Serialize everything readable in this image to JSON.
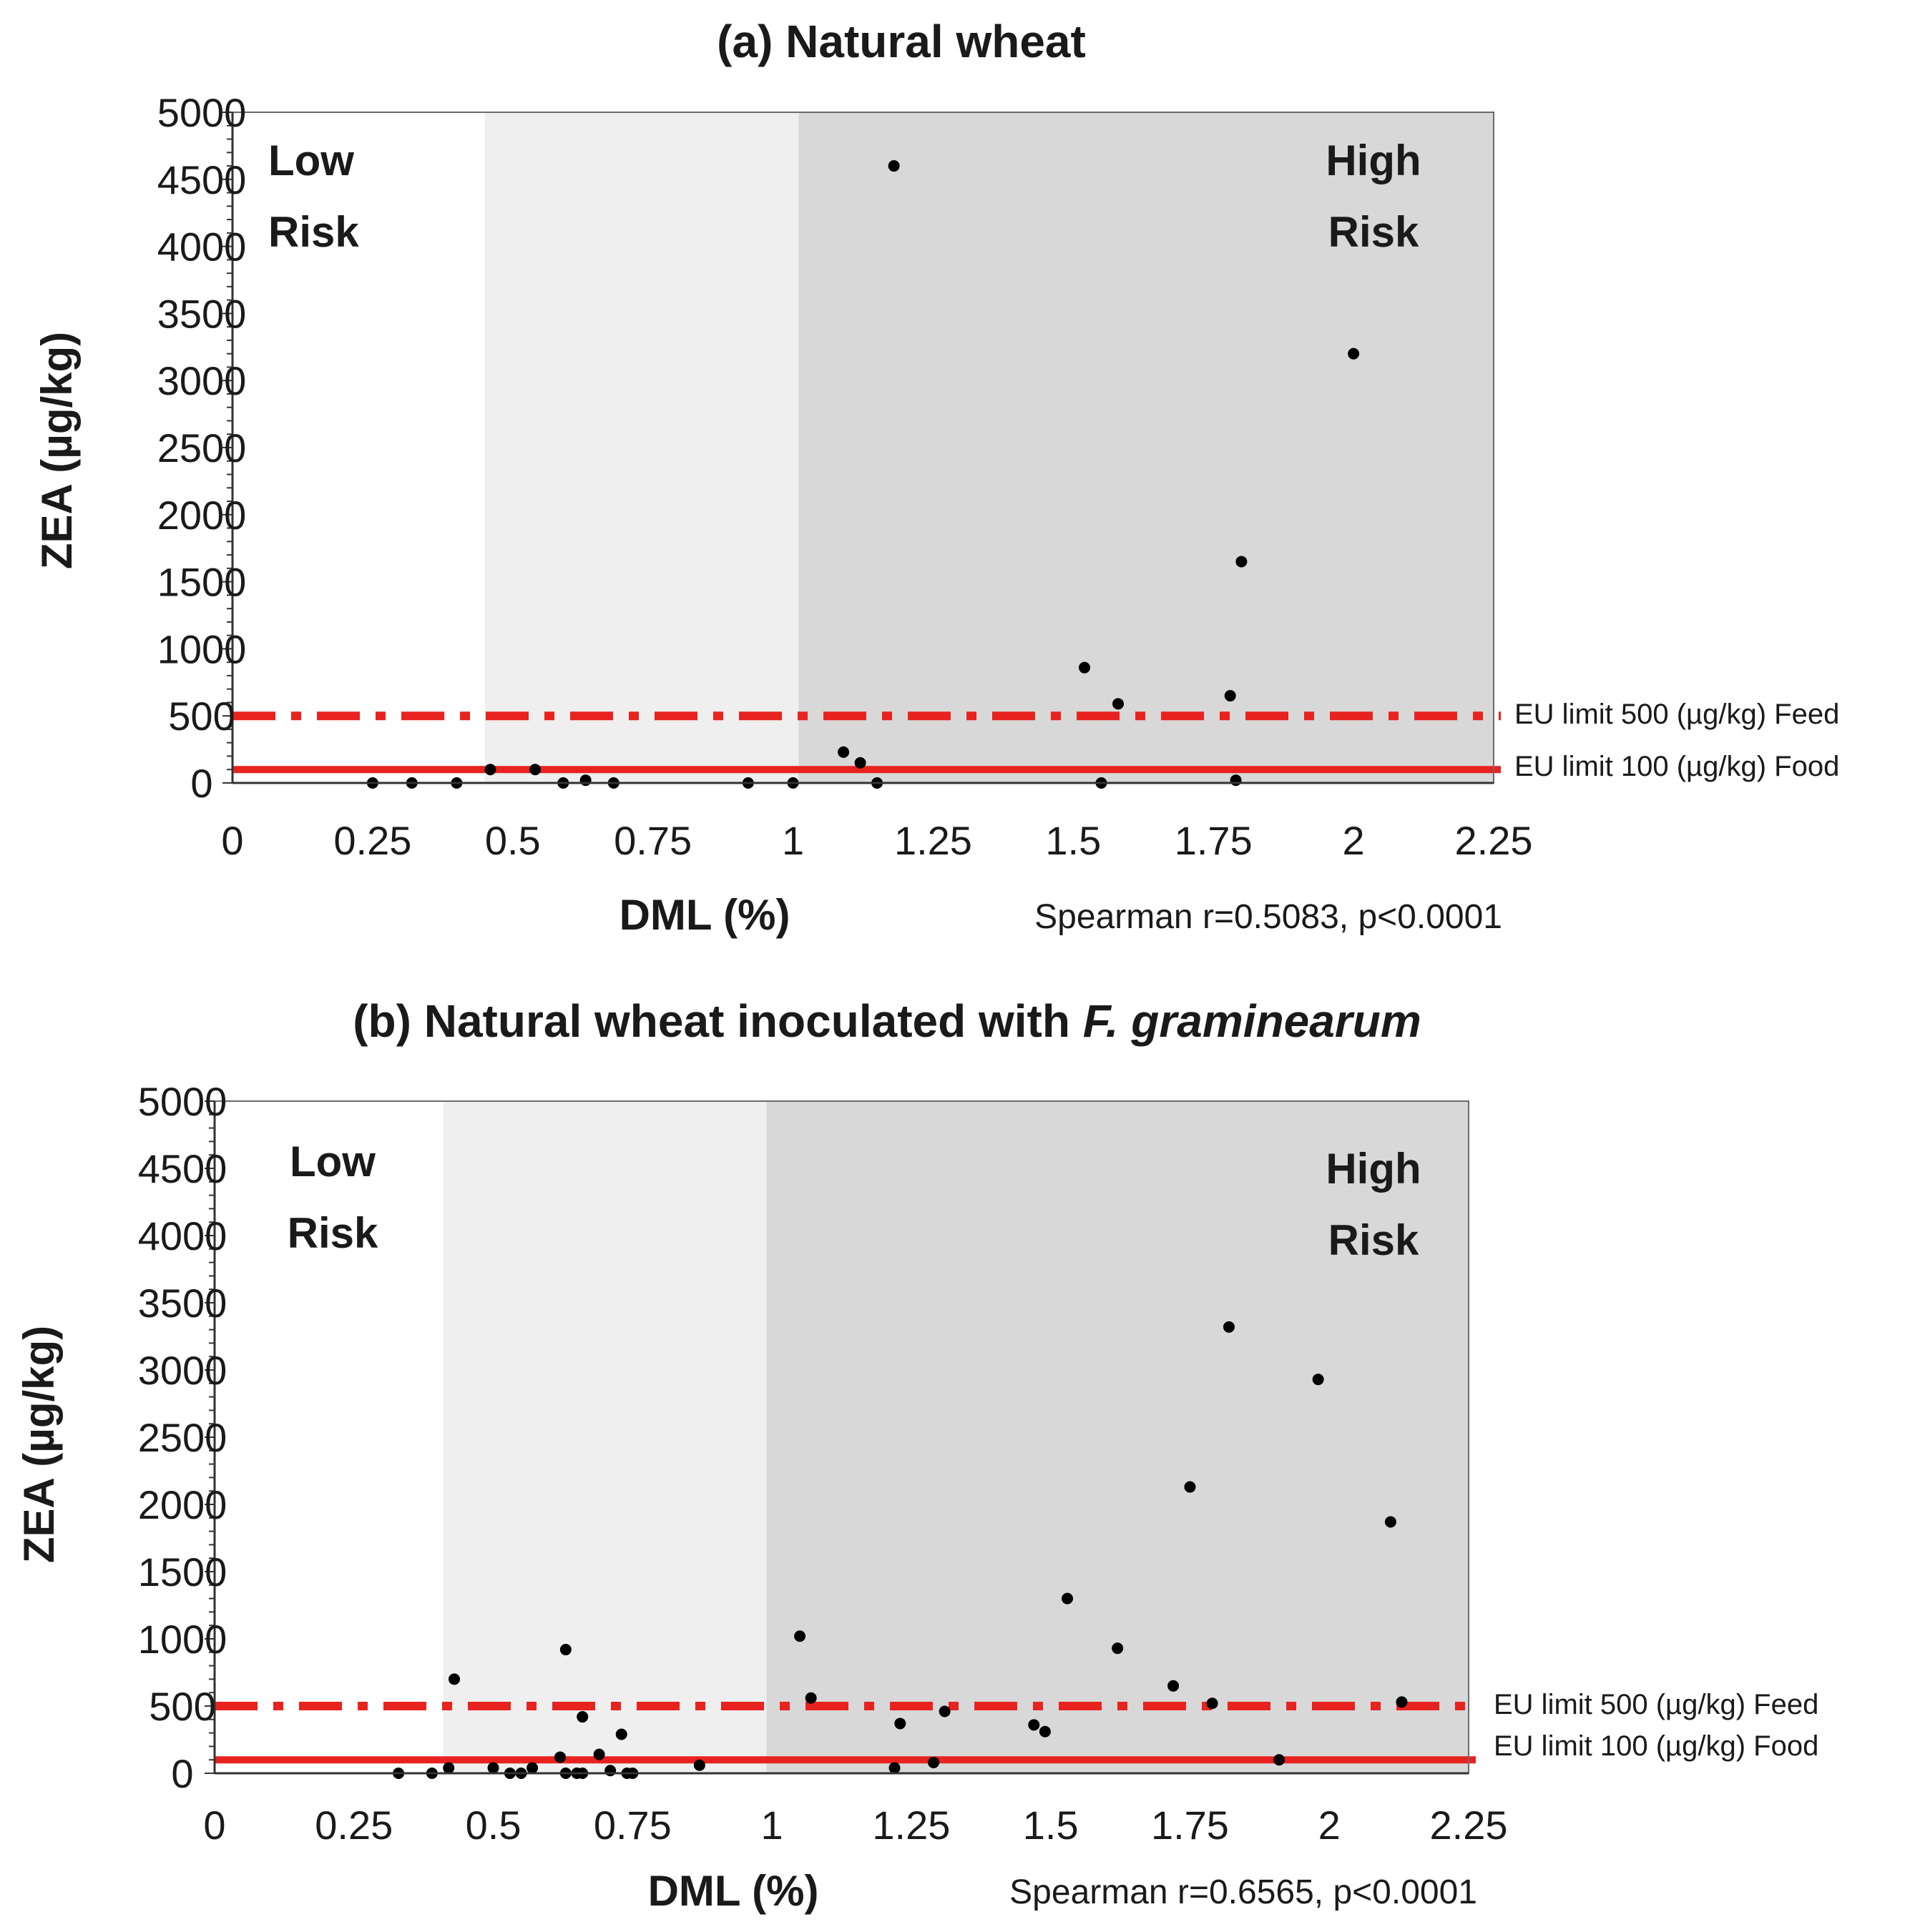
{
  "chart_data": [
    {
      "type": "scatter",
      "title_prefix": "(a) Natural wheat",
      "title_italic": "",
      "xlabel": "DML (%)",
      "ylabel": "ZEA (µg/kg)",
      "xlim": [
        0,
        2.25
      ],
      "ylim": [
        0,
        5000
      ],
      "x_ticks": [
        "0",
        "0.25",
        "0.5",
        "0.75",
        "1",
        "1.25",
        "1.5",
        "1.75",
        "2",
        "2.25"
      ],
      "y_ticks": [
        "0",
        "500",
        "1000",
        "1500",
        "2000",
        "2500",
        "3000",
        "3500",
        "4000",
        "4500",
        "5000"
      ],
      "zones": [
        {
          "name": "low",
          "x_from": 0,
          "x_to": 0.45,
          "color": "#ffffff"
        },
        {
          "name": "medium",
          "x_from": 0.45,
          "x_to": 1.01,
          "color": "#efefef"
        },
        {
          "name": "high",
          "x_from": 1.01,
          "x_to": 2.25,
          "color": "#d8d8d8"
        }
      ],
      "low_risk_label": [
        "Low",
        "Risk"
      ],
      "high_risk_label": [
        "High",
        "Risk"
      ],
      "limits": [
        {
          "value": 500,
          "style": "dashdot",
          "label": "EU  limit 500 (µg/kg)  Feed"
        },
        {
          "value": 100,
          "style": "solid",
          "label": "EU  limit 100 (µg/kg)  Food"
        }
      ],
      "limit_color": "#e8231f",
      "stats": "Spearman  r=0.5083,  p<0.0001",
      "points": [
        {
          "x": 0.25,
          "y": 0
        },
        {
          "x": 0.32,
          "y": 0
        },
        {
          "x": 0.4,
          "y": 0
        },
        {
          "x": 0.46,
          "y": 100
        },
        {
          "x": 0.54,
          "y": 100
        },
        {
          "x": 0.59,
          "y": 0
        },
        {
          "x": 0.63,
          "y": 20
        },
        {
          "x": 0.68,
          "y": 0
        },
        {
          "x": 0.92,
          "y": 0
        },
        {
          "x": 1.0,
          "y": 0
        },
        {
          "x": 1.09,
          "y": 230
        },
        {
          "x": 1.12,
          "y": 150
        },
        {
          "x": 1.15,
          "y": 0
        },
        {
          "x": 1.18,
          "y": 4600
        },
        {
          "x": 1.52,
          "y": 860
        },
        {
          "x": 1.55,
          "y": 0
        },
        {
          "x": 1.58,
          "y": 590
        },
        {
          "x": 1.78,
          "y": 650
        },
        {
          "x": 1.79,
          "y": 20
        },
        {
          "x": 1.8,
          "y": 1650
        },
        {
          "x": 2.0,
          "y": 3200
        }
      ]
    },
    {
      "type": "scatter",
      "title_prefix": "(b) Natural wheat inoculated with ",
      "title_italic": "F. graminearum",
      "xlabel": "DML (%)",
      "ylabel": "ZEA (µg/kg)",
      "xlim": [
        0,
        2.25
      ],
      "ylim": [
        0,
        5000
      ],
      "x_ticks": [
        "0",
        "0.25",
        "0.5",
        "0.75",
        "1",
        "1.25",
        "1.5",
        "1.75",
        "2",
        "2.25"
      ],
      "y_ticks": [
        "0",
        "500",
        "1000",
        "1500",
        "2000",
        "2500",
        "3000",
        "3500",
        "4000",
        "4500",
        "5000"
      ],
      "zones": [
        {
          "name": "low",
          "x_from": 0,
          "x_to": 0.41,
          "color": "#ffffff"
        },
        {
          "name": "medium",
          "x_from": 0.41,
          "x_to": 0.99,
          "color": "#efefef"
        },
        {
          "name": "high",
          "x_from": 0.99,
          "x_to": 2.25,
          "color": "#d8d8d8"
        }
      ],
      "low_risk_label": [
        "Low",
        "Risk"
      ],
      "high_risk_label": [
        "High",
        "Risk"
      ],
      "limits": [
        {
          "value": 500,
          "style": "dashdot",
          "label": "EU  limit 500 (µg/kg)  Feed"
        },
        {
          "value": 100,
          "style": "solid",
          "label": "EU  limit 100 (µg/kg)  Food"
        }
      ],
      "limit_color": "#e8231f",
      "stats": "Spearman  r=0.6565,  p<0.0001",
      "points": [
        {
          "x": 0.33,
          "y": 0
        },
        {
          "x": 0.39,
          "y": 0
        },
        {
          "x": 0.42,
          "y": 40
        },
        {
          "x": 0.43,
          "y": 700
        },
        {
          "x": 0.5,
          "y": 40
        },
        {
          "x": 0.53,
          "y": 0
        },
        {
          "x": 0.55,
          "y": 0
        },
        {
          "x": 0.57,
          "y": 40
        },
        {
          "x": 0.62,
          "y": 120
        },
        {
          "x": 0.63,
          "y": 0
        },
        {
          "x": 0.63,
          "y": 920
        },
        {
          "x": 0.65,
          "y": 0
        },
        {
          "x": 0.66,
          "y": 0
        },
        {
          "x": 0.66,
          "y": 420
        },
        {
          "x": 0.69,
          "y": 140
        },
        {
          "x": 0.71,
          "y": 20
        },
        {
          "x": 0.73,
          "y": 290
        },
        {
          "x": 0.74,
          "y": 0
        },
        {
          "x": 0.75,
          "y": 0
        },
        {
          "x": 0.87,
          "y": 60
        },
        {
          "x": 1.05,
          "y": 1020
        },
        {
          "x": 1.07,
          "y": 560
        },
        {
          "x": 1.22,
          "y": 40
        },
        {
          "x": 1.23,
          "y": 370
        },
        {
          "x": 1.29,
          "y": 80
        },
        {
          "x": 1.31,
          "y": 460
        },
        {
          "x": 1.47,
          "y": 360
        },
        {
          "x": 1.49,
          "y": 310
        },
        {
          "x": 1.53,
          "y": 1300
        },
        {
          "x": 1.62,
          "y": 930
        },
        {
          "x": 1.72,
          "y": 650
        },
        {
          "x": 1.75,
          "y": 2130
        },
        {
          "x": 1.79,
          "y": 520
        },
        {
          "x": 1.82,
          "y": 3320
        },
        {
          "x": 1.91,
          "y": 100
        },
        {
          "x": 1.98,
          "y": 2930
        },
        {
          "x": 2.11,
          "y": 1870
        },
        {
          "x": 2.13,
          "y": 530
        }
      ]
    }
  ]
}
